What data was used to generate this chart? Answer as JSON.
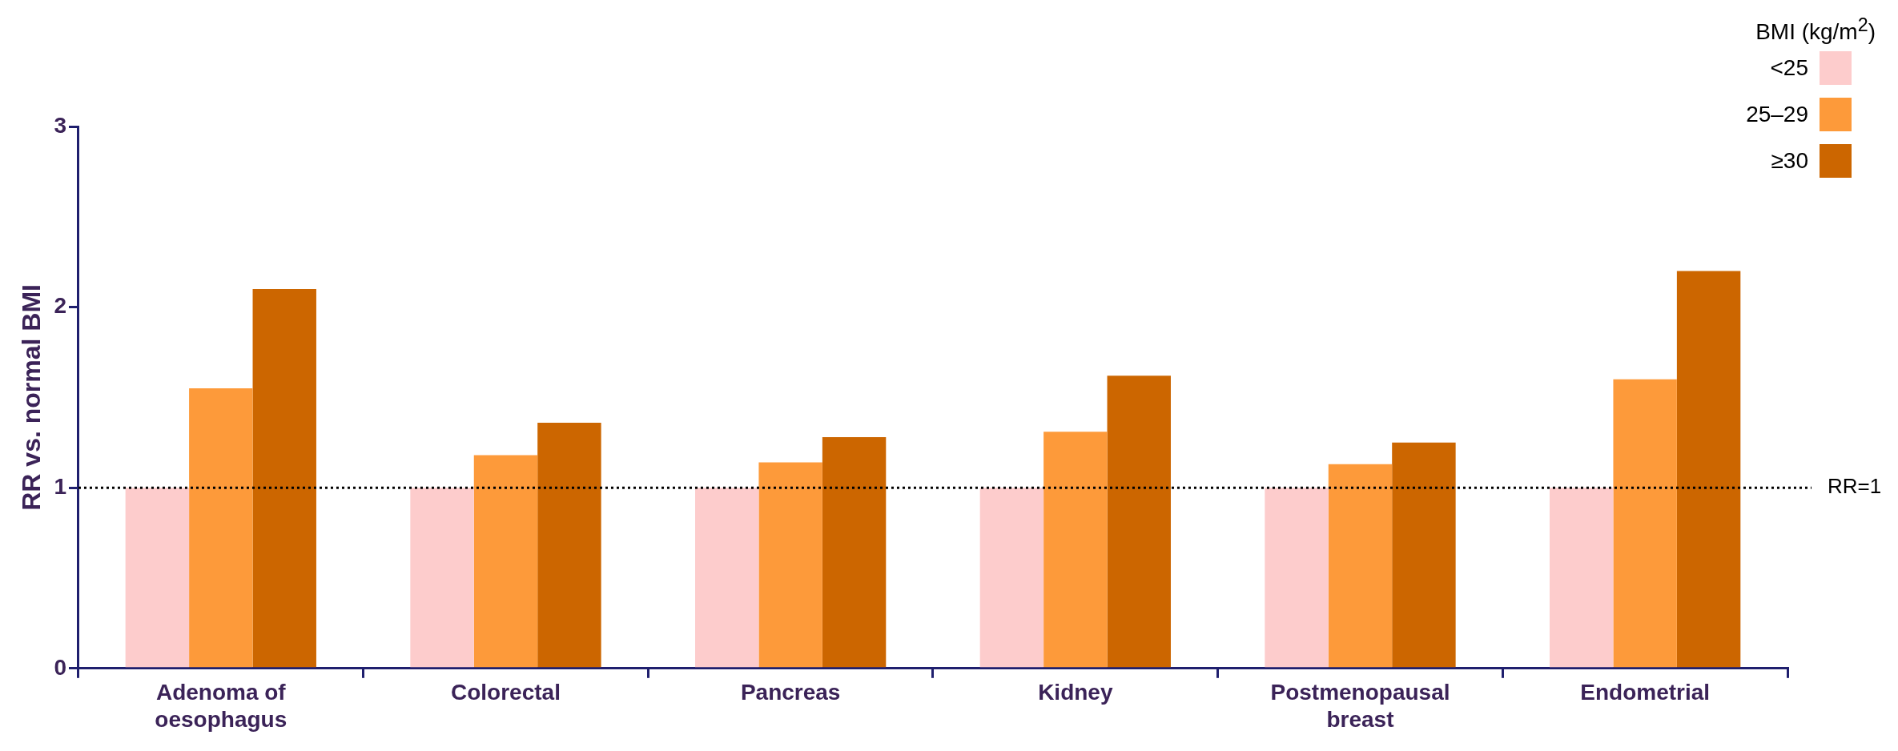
{
  "chart_data": {
    "type": "bar",
    "ylabel": "RR vs. normal BMI",
    "legend_title": "BMI (kg/m$^{2}$)",
    "legend": "top right",
    "grid": false,
    "categories": [
      "Adenoma of oesophagus",
      "Colorectal",
      "Pancreas",
      "Kidney",
      "Postmenopausal breast",
      "Endometrial"
    ],
    "series": [
      {
        "name": "<25",
        "color": "#fdcccc",
        "values": [
          1,
          1,
          1,
          1,
          1,
          1
        ]
      },
      {
        "name": "25–29",
        "color": "#fd9a3a",
        "values": [
          1.55,
          1.18,
          1.14,
          1.31,
          1.13,
          1.6
        ]
      },
      {
        "name": "≥30",
        "color": "#cc6600",
        "values": [
          2.1,
          1.36,
          1.28,
          1.62,
          1.25,
          2.2
        ]
      }
    ],
    "ylim": [
      0,
      3
    ],
    "yticks": [
      0,
      1,
      2,
      3
    ],
    "ref_lines": [
      {
        "axis": "y",
        "value": 1,
        "label": "RR=1",
        "line_style": "dotted",
        "color": "#000000"
      }
    ]
  }
}
